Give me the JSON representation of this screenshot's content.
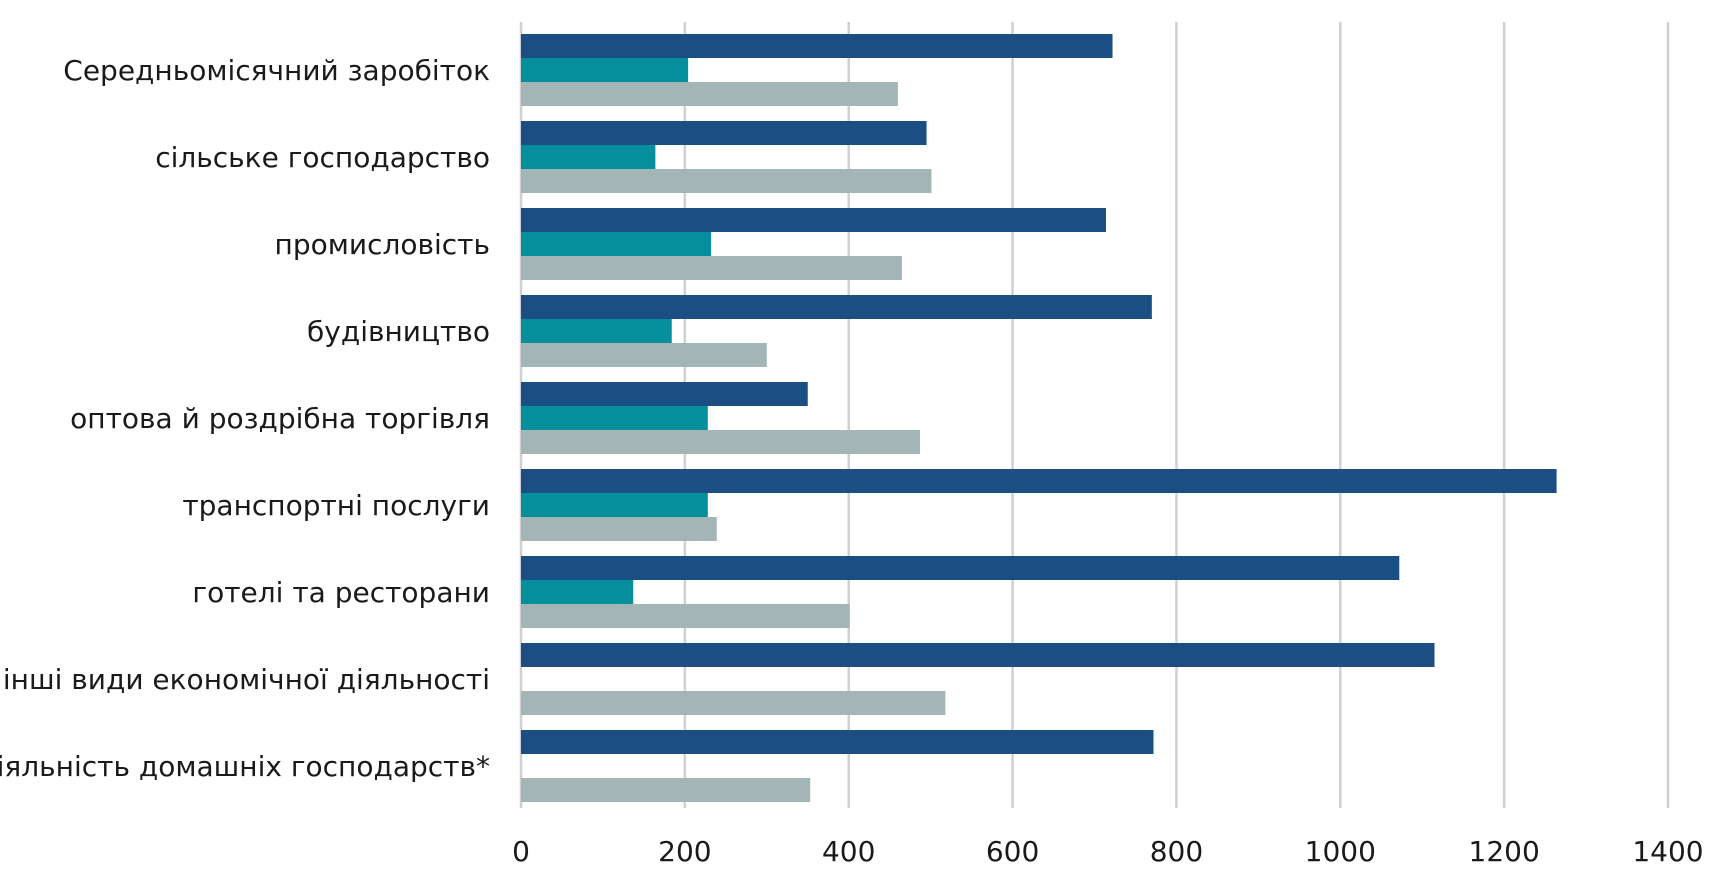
{
  "chart_data": {
    "type": "bar",
    "orientation": "horizontal",
    "categories": [
      "Середньомісячний заробіток",
      "сільське господарство",
      "промисловість",
      "будівництво",
      "оптова й роздрібна торгівля",
      "транспортні послуги",
      "готелі та ресторани",
      "інші види економічної діяльності",
      "діяльність домашніх господарств*"
    ],
    "series": [
      {
        "color": "#1b4f83",
        "values": [
          722,
          495,
          714,
          770,
          350,
          1264,
          1072,
          1115,
          772
        ]
      },
      {
        "color": "#058f9c",
        "values": [
          204,
          164,
          232,
          184,
          228,
          228,
          137,
          null,
          null
        ]
      },
      {
        "color": "#a3b5b5",
        "values": [
          460,
          501,
          465,
          300,
          487,
          239,
          401,
          518,
          353
        ]
      }
    ],
    "xticks": [
      "0",
      "200",
      "400",
      "600",
      "800",
      "1000",
      "1200",
      "1400"
    ],
    "xlim": [
      0,
      1400
    ],
    "grid": "vertical",
    "legend": "none"
  }
}
